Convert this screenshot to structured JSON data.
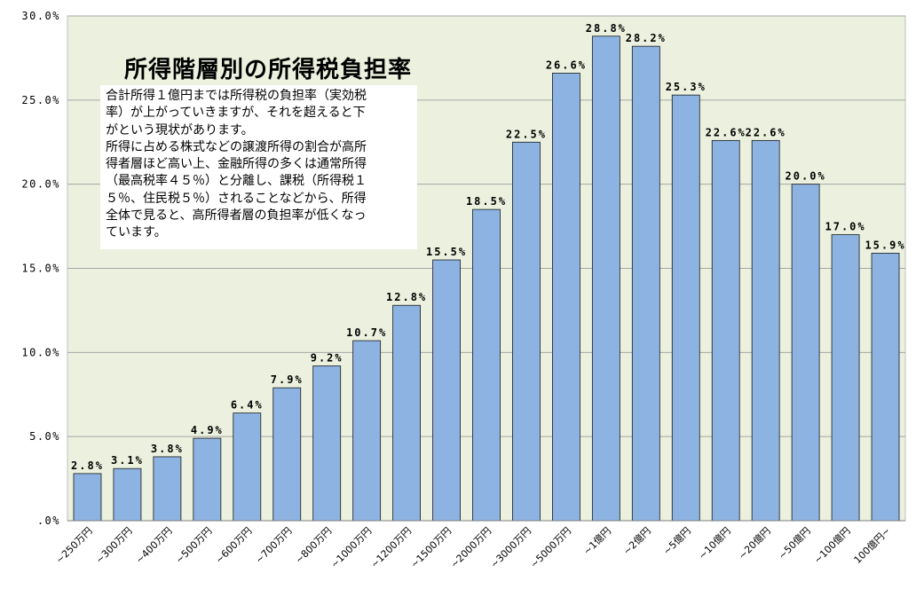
{
  "chart_data": {
    "type": "bar",
    "title": "所得階層別の所得税負担率",
    "note_lines": [
      "合計所得１億円までは所得税の負担率（実効税",
      "率）が上がっていきますが、それを超えると下",
      "がという現状があります。",
      "所得に占める株式などの譲渡所得の割合が高所",
      "得者層ほど高い上、金融所得の多くは通常所得",
      "（最高税率４５％）と分離し、課税（所得税１",
      "５％、住民税５％）されることなどから、所得",
      "全体で見ると、高所得者層の負担率が低くなっ",
      "ています。"
    ],
    "categories": [
      "~250万円",
      "~300万円",
      "~400万円",
      "~500万円",
      "~600万円",
      "~700万円",
      "~800万円",
      "~1000万円",
      "~1200万円",
      "~1500万円",
      "~2000万円",
      "~3000万円",
      "~5000万円",
      "~1億円",
      "~2億円",
      "~5億円",
      "~10億円",
      "~20億円",
      "~50億円",
      "~100億円",
      "100億円~"
    ],
    "values": [
      2.8,
      3.1,
      3.8,
      4.9,
      6.4,
      7.9,
      9.2,
      10.7,
      12.8,
      15.5,
      18.5,
      22.5,
      26.6,
      28.8,
      28.2,
      25.3,
      22.6,
      22.6,
      20.0,
      17.0,
      15.9
    ],
    "data_labels": [
      "2.8%",
      "3.1%",
      "3.8%",
      "4.9%",
      "6.4%",
      "7.9%",
      "9.2%",
      "10.7%",
      "12.8%",
      "15.5%",
      "18.5%",
      "22.5%",
      "26.6%",
      "28.8%",
      "28.2%",
      "25.3%",
      "22.6%",
      "22.6%",
      "20.0%",
      "17.0%",
      "15.9%"
    ],
    "y_ticks": [
      0,
      5,
      10,
      15,
      20,
      25,
      30
    ],
    "y_tick_labels": [
      ".0%",
      "5.0%",
      "10.0%",
      "15.0%",
      "20.0%",
      "25.0%",
      "30.0%"
    ],
    "ylim": [
      0,
      30
    ],
    "xlabel": "",
    "ylabel": "",
    "grid": true,
    "legend": "none",
    "colors": {
      "plot_background": "#ebf1de",
      "bar_fill": "#8db3e2",
      "bar_stroke": "#1a1a1a",
      "grid": "#a6a6a6",
      "text": "#000000"
    }
  }
}
